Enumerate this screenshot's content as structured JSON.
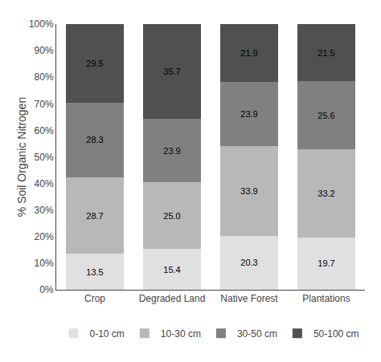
{
  "chart_data": {
    "type": "bar",
    "stacked": true,
    "categories": [
      "Crop",
      "Degraded Land",
      "Native Forest",
      "Plantations"
    ],
    "series": [
      {
        "name": "0-10 cm",
        "color": "#e0e0e0",
        "values": [
          13.5,
          15.4,
          20.3,
          19.7
        ],
        "value_labels": [
          "13.5",
          "15.4",
          "20.3",
          "19.7"
        ]
      },
      {
        "name": "10-30 cm",
        "color": "#b8b8b8",
        "values": [
          28.7,
          25.0,
          33.9,
          33.2
        ],
        "value_labels": [
          "28.7",
          "25.0",
          "33.9",
          "33.2"
        ]
      },
      {
        "name": "30-50 cm",
        "color": "#808080",
        "values": [
          28.3,
          23.9,
          23.9,
          25.6
        ],
        "value_labels": [
          "28.3",
          "23.9",
          "23.9",
          "25.6"
        ]
      },
      {
        "name": "50-100 cm",
        "color": "#505050",
        "values": [
          29.5,
          35.7,
          21.9,
          21.5
        ],
        "value_labels": [
          "29.5",
          "35.7",
          "21.9",
          "21.5"
        ]
      }
    ],
    "ylabel": "% Soil Organic Nitrogen",
    "ylim": [
      0,
      100
    ],
    "yticks": [
      {
        "value": 0,
        "label": "0%"
      },
      {
        "value": 10,
        "label": "10%"
      },
      {
        "value": 20,
        "label": "20%"
      },
      {
        "value": 30,
        "label": "30%"
      },
      {
        "value": 40,
        "label": "40%"
      },
      {
        "value": 50,
        "label": "50%"
      },
      {
        "value": 60,
        "label": "60%"
      },
      {
        "value": 70,
        "label": "70%"
      },
      {
        "value": 80,
        "label": "80%"
      },
      {
        "value": 90,
        "label": "90%"
      },
      {
        "value": 100,
        "label": "100%"
      }
    ],
    "data_labels": true,
    "grid": false,
    "legend": "bottom"
  }
}
